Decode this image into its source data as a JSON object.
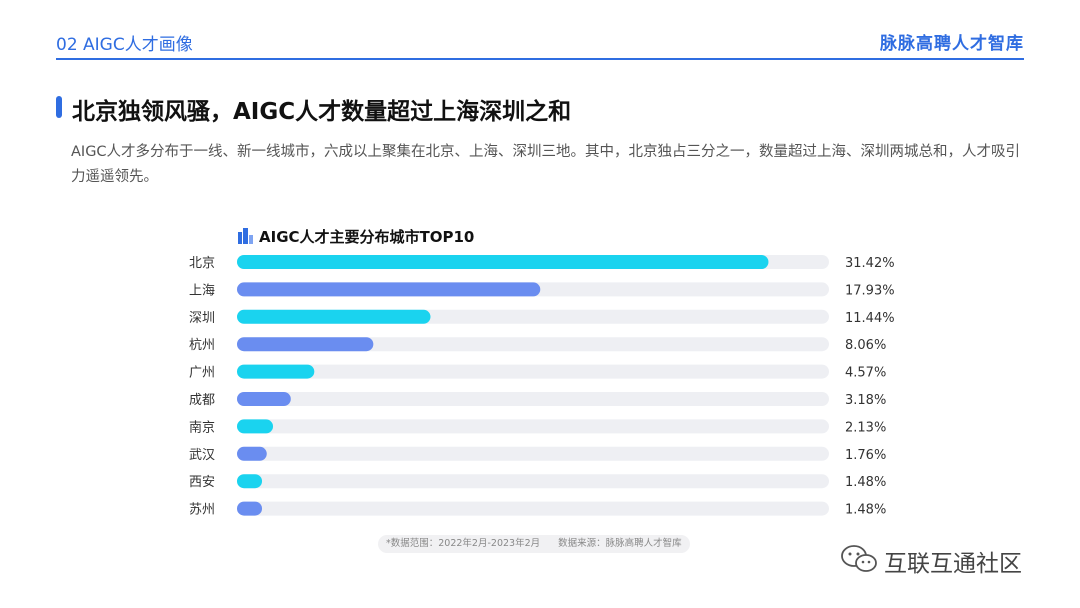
{
  "header": {
    "section": "02 AIGC人才画像",
    "brand": "脉脉高聘人才智库"
  },
  "headline": "北京独领风骚，AIGC人才数量超过上海深圳之和",
  "description": "AIGC人才多分布于一线、新一线城市，六成以上聚集在北京、上海、深圳三地。其中，北京独占三分之一，数量超过上海、深圳两城总和，人才吸引力遥遥领先。",
  "chart_data": {
    "type": "bar",
    "orientation": "horizontal",
    "title": "AIGC人才主要分布城市TOP10",
    "categories": [
      "北京",
      "上海",
      "深圳",
      "杭州",
      "广州",
      "成都",
      "南京",
      "武汉",
      "西安",
      "苏州"
    ],
    "values": [
      31.42,
      17.93,
      11.44,
      8.06,
      4.57,
      3.18,
      2.13,
      1.76,
      1.48,
      1.48
    ],
    "value_labels": [
      "31.42%",
      "17.93%",
      "11.44%",
      "8.06%",
      "4.57%",
      "3.18%",
      "2.13%",
      "1.76%",
      "1.48%",
      "1.48%"
    ],
    "xlim": [
      0,
      35
    ],
    "grid": false,
    "bar_colors": [
      "#1ad3ef",
      "#6a8df0"
    ],
    "track_color": "#eeeff3"
  },
  "footnote": {
    "range": "*数据范围：2022年2月-2023年2月",
    "source": "数据来源：脉脉高聘人才智库"
  },
  "watermark": {
    "text": "互联互通社区",
    "icon": "wechat-icon"
  },
  "colors": {
    "accent": "#2f6de1"
  }
}
